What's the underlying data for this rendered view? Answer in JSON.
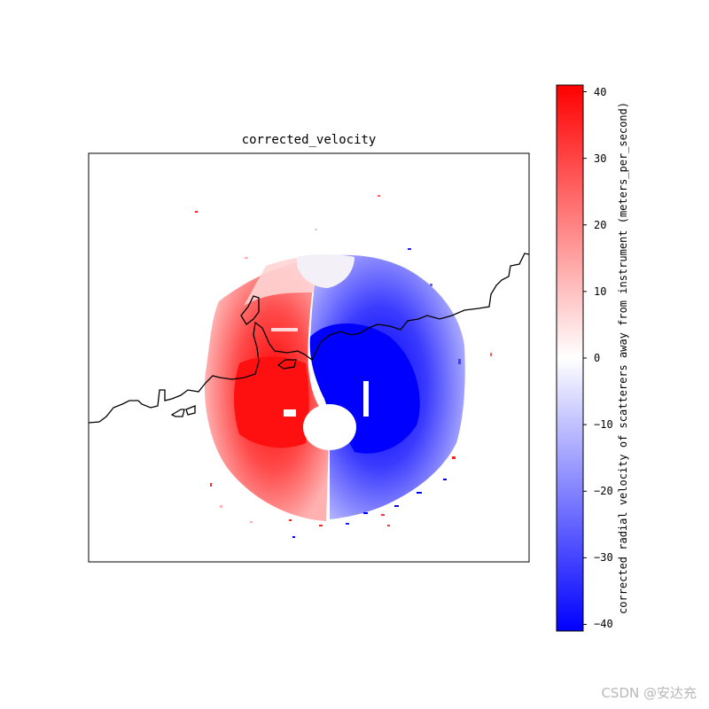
{
  "chart_data": {
    "type": "heatmap",
    "title": "corrected_velocity",
    "colorbar": {
      "label": "corrected radial velocity of scatterers away from instrument (meters_per_second)",
      "range": [
        -41,
        41
      ],
      "ticks": [
        40,
        30,
        20,
        10,
        0,
        -10,
        -20,
        -30,
        -40
      ],
      "colormap": "bwr",
      "low_color": "#0000ff",
      "mid_color": "#ffffff",
      "high_color": "#ff0000"
    },
    "field": {
      "description_of_pattern": "radar PPI velocity field: positive (away) west of radar, negative (toward) east of radar",
      "max_velocity": 41,
      "min_velocity": -41
    },
    "coastline_color": "#000000",
    "grid": false
  },
  "watermark": "CSDN @安达充"
}
